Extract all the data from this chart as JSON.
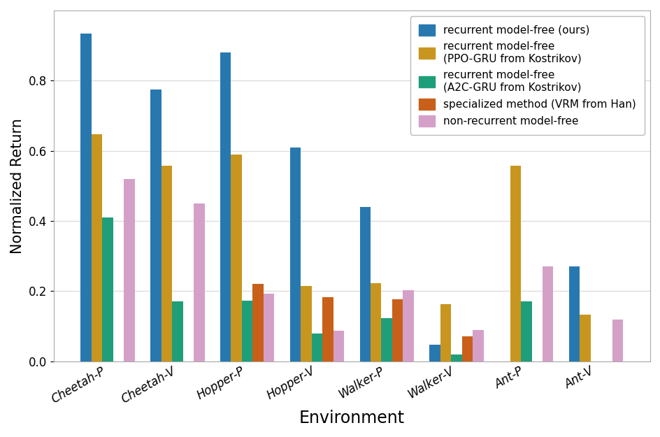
{
  "environments": [
    "Cheetah-P",
    "Cheetah-V",
    "Hopper-P",
    "Hopper-V",
    "Walker-P",
    "Walker-V",
    "Ant-P",
    "Ant-V"
  ],
  "series": {
    "recurrent model-free (ours)": [
      0.935,
      0.775,
      0.88,
      0.61,
      0.44,
      0.048,
      0.0,
      0.27
    ],
    "recurrent model-free\n(PPO-GRU from Kostrikov)": [
      0.648,
      0.558,
      0.59,
      0.215,
      0.222,
      0.163,
      0.558,
      0.133
    ],
    "recurrent model-free\n(A2C-GRU from Kostrikov)": [
      0.41,
      0.17,
      0.173,
      0.08,
      0.123,
      0.02,
      0.17,
      0.0
    ],
    "specialized method (VRM from Han)": [
      0.0,
      0.0,
      0.22,
      0.183,
      0.177,
      0.072,
      0.0,
      0.0
    ],
    "non-recurrent model-free": [
      0.52,
      0.45,
      0.193,
      0.088,
      0.203,
      0.09,
      0.27,
      0.118
    ]
  },
  "colors": {
    "recurrent model-free (ours)": "#2878b0",
    "recurrent model-free\n(PPO-GRU from Kostrikov)": "#c8961e",
    "recurrent model-free\n(A2C-GRU from Kostrikov)": "#1f9e7a",
    "specialized method (VRM from Han)": "#c8601a",
    "non-recurrent model-free": "#d4a0c8"
  },
  "legend_labels": [
    "recurrent model-free (ours)",
    "recurrent model-free\n(PPO-GRU from Kostrikov)",
    "recurrent model-free\n(A2C-GRU from Kostrikov)",
    "specialized method (VRM from Han)",
    "non-recurrent model-free"
  ],
  "xlabel": "Environment",
  "ylabel": "Normalized Return",
  "ylim": [
    0.0,
    1.0
  ],
  "yticks": [
    0.0,
    0.2,
    0.4,
    0.6,
    0.8
  ],
  "grid_color": "#dddddd",
  "background_color": "#ffffff",
  "figsize": [
    9.45,
    6.25
  ],
  "dpi": 100
}
